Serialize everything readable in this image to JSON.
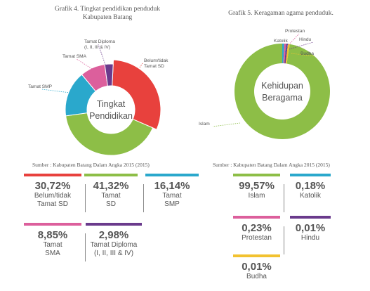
{
  "chart_data": [
    {
      "type": "pie",
      "title": "Grafik 4. Tingkat pendidikan penduduk",
      "subtitle": "Kabupaten Batang",
      "center_text": [
        "Tingkat",
        "Pendidikan"
      ],
      "source": "Sumber : Kabupaten Batang Dalam Angka 2015 (2015)",
      "categories": [
        "Belum/tidak Tamat SD",
        "Tamat SD",
        "Tamat SMP",
        "Tamat SMA",
        "Tamat Diploma (I, II, III & IV)"
      ],
      "callouts": [
        [
          "Belum/tidak",
          "Tamat SD"
        ],
        [
          "Tamat SD"
        ],
        [
          "Tamat SMP"
        ],
        [
          "Tamat SMA"
        ],
        [
          "Tamat Diploma",
          "(I, II, III & IV)"
        ]
      ],
      "values": [
        30.72,
        41.32,
        16.14,
        8.85,
        2.98
      ],
      "colors": [
        "#e8413d",
        "#8dbe47",
        "#2aa8cc",
        "#dc5f9c",
        "#6a3a8c"
      ],
      "cards": [
        {
          "pct": "30,72%",
          "label": "Belum/tidak\nTamat SD"
        },
        {
          "pct": "41,32%",
          "label": "Tamat\nSD"
        },
        {
          "pct": "16,14%",
          "label": "Tamat\nSMP"
        },
        {
          "pct": "8,85%",
          "label": "Tamat\nSMA"
        },
        {
          "pct": "2,98%",
          "label": "Tamat Diploma\n(I, II, III & IV)"
        }
      ]
    },
    {
      "type": "pie",
      "title": "Grafik 5. Keragaman agama penduduk.",
      "center_text": [
        "Kehidupan",
        "Beragama"
      ],
      "source": "Sumber : Kabupaten Batang Dalam Angka 2015 (2015)",
      "categories": [
        "Islam",
        "Katolik",
        "Protestan",
        "Hindu",
        "Budha"
      ],
      "callouts": [
        [
          "Islam"
        ],
        [
          "Katolik"
        ],
        [
          "Protestan"
        ],
        [
          "Hindu"
        ],
        [
          "Budha"
        ]
      ],
      "values": [
        99.57,
        0.18,
        0.23,
        0.01,
        0.01
      ],
      "colors": [
        "#8dbe47",
        "#2aa8cc",
        "#dc5f9c",
        "#6a3a8c",
        "#f2c230"
      ],
      "cards": [
        {
          "pct": "99,57%",
          "label": "Islam"
        },
        {
          "pct": "0,18%",
          "label": "Katolik"
        },
        {
          "pct": "0,23%",
          "label": "Protestan"
        },
        {
          "pct": "0,01%",
          "label": "Hindu"
        },
        {
          "pct": "0,01%",
          "label": "Budha"
        }
      ]
    }
  ]
}
